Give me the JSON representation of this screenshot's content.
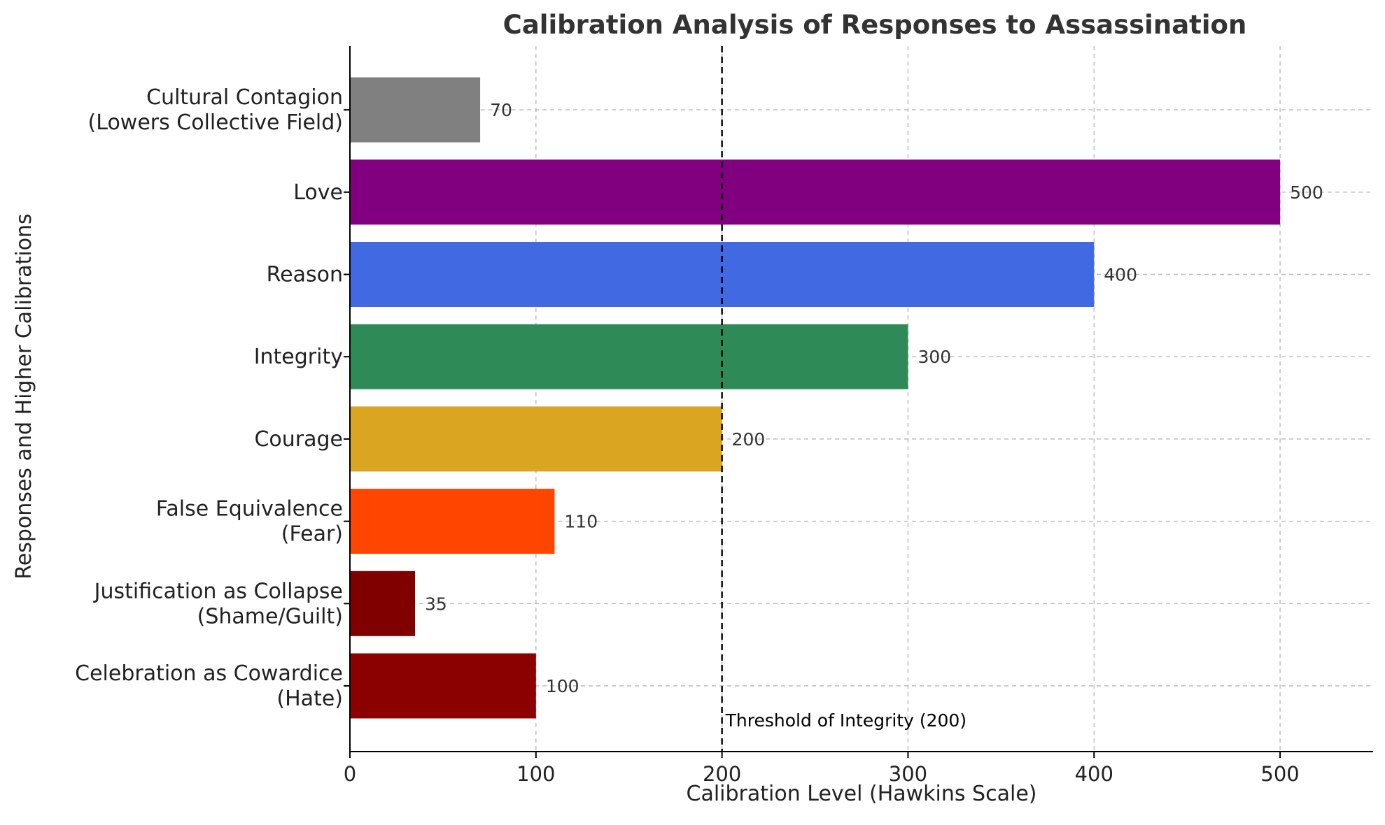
{
  "chart_data": {
    "type": "bar",
    "orientation": "horizontal",
    "title": "Calibration Analysis of Responses to Assassination",
    "xlabel": "Calibration Level (Hawkins Scale)",
    "ylabel": "Responses and Higher Calibrations",
    "xlim": [
      0,
      550
    ],
    "xticks": [
      0,
      100,
      200,
      300,
      400,
      500
    ],
    "grid": true,
    "categories": [
      {
        "lines": [
          "Celebration as Cowardice",
          "(Hate)"
        ],
        "value": 100,
        "color": "#8b0000"
      },
      {
        "lines": [
          "Justification as Collapse",
          "(Shame/Guilt)"
        ],
        "value": 35,
        "color": "#800000"
      },
      {
        "lines": [
          "False Equivalence",
          "(Fear)"
        ],
        "value": 110,
        "color": "#ff4500"
      },
      {
        "lines": [
          "Courage"
        ],
        "value": 200,
        "color": "#daa520"
      },
      {
        "lines": [
          "Integrity"
        ],
        "value": 300,
        "color": "#2e8b57"
      },
      {
        "lines": [
          "Reason"
        ],
        "value": 400,
        "color": "#4169e1"
      },
      {
        "lines": [
          "Love"
        ],
        "value": 500,
        "color": "#800080"
      },
      {
        "lines": [
          "Cultural Contagion",
          "(Lowers Collective Field)"
        ],
        "value": 70,
        "color": "#808080"
      }
    ],
    "threshold": {
      "value": 200,
      "label": "Threshold of Integrity (200)"
    }
  }
}
